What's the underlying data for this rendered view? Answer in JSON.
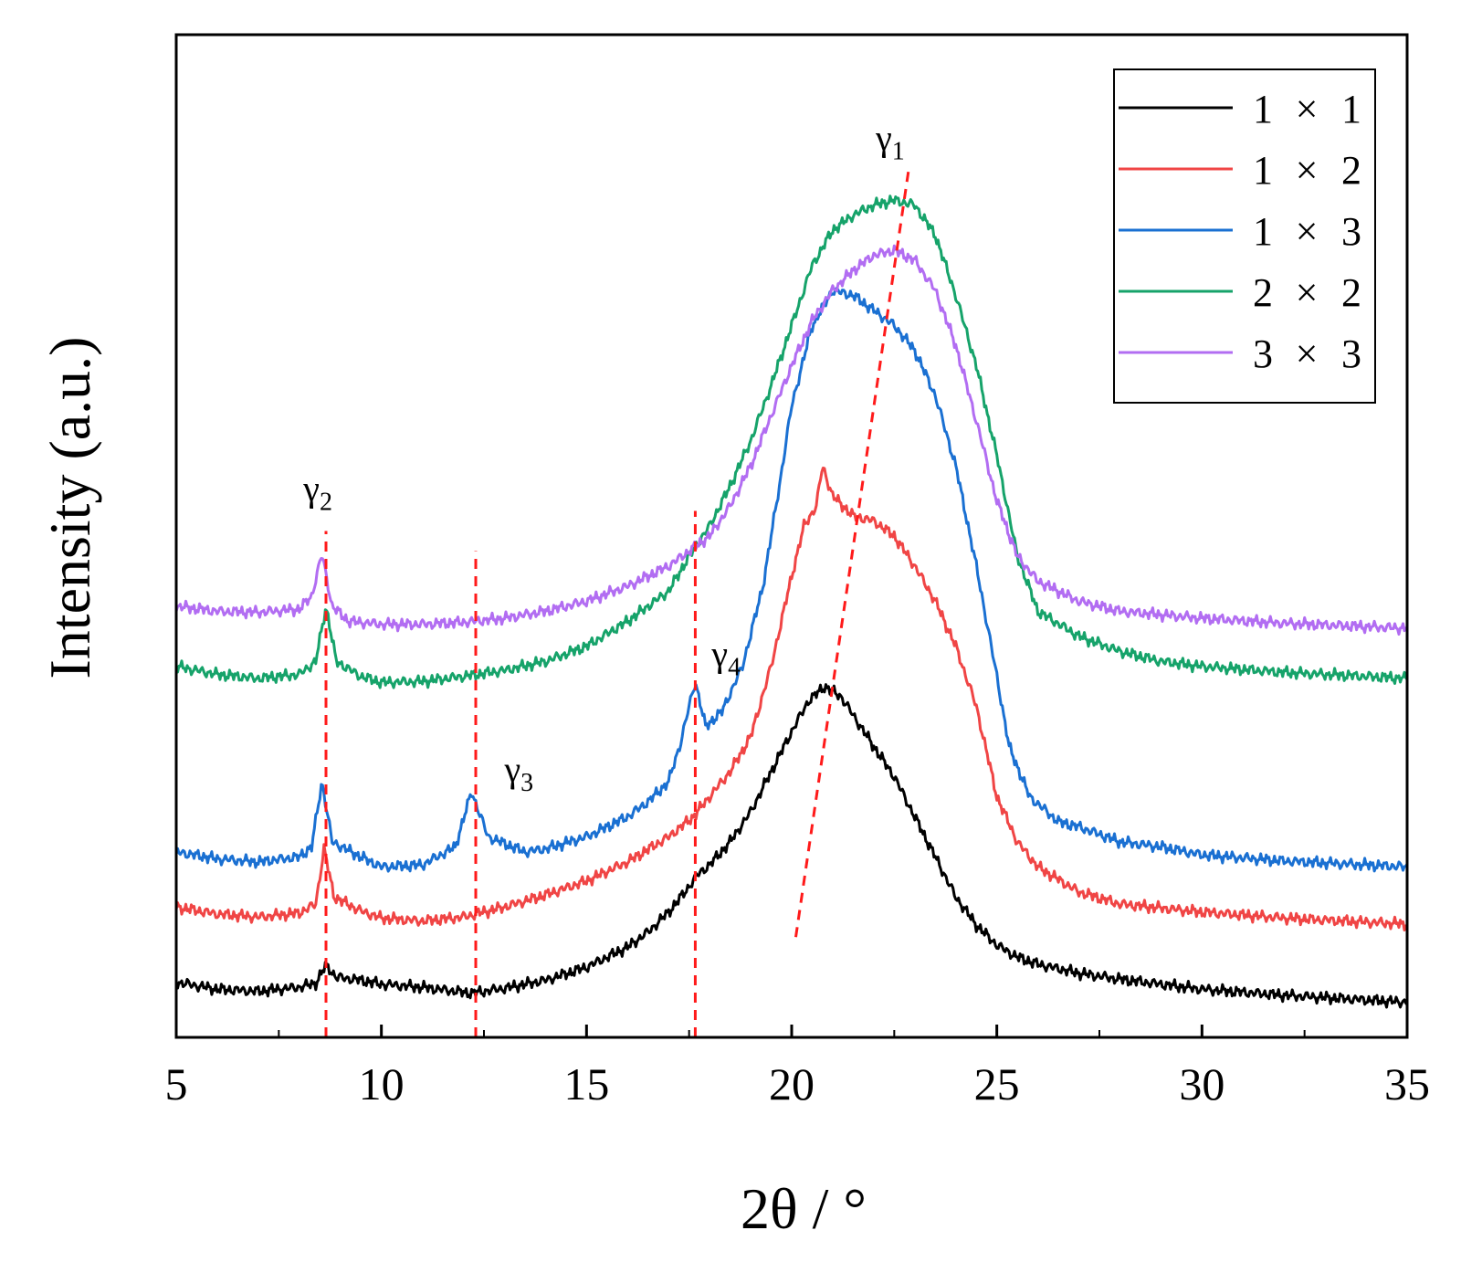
{
  "chart_data": {
    "type": "line",
    "title": "",
    "xlabel": "2θ / °",
    "ylabel": "Intensity (a.u.)",
    "xlim": [
      5,
      35
    ],
    "ylim": [
      0,
      100
    ],
    "xticks": [
      5,
      10,
      15,
      20,
      25,
      30,
      35
    ],
    "xtick_labels": [
      "5",
      "10",
      "15",
      "20",
      "25",
      "30",
      "35"
    ],
    "y_tick_labels": false,
    "grid": false,
    "legend_position": "top-right",
    "legend_separator": "×",
    "series": [
      {
        "name": "1 × 1",
        "label_left": "1",
        "label_right": "1",
        "color": "#000000",
        "x": [
          5,
          6,
          7,
          8,
          8.4,
          8.65,
          8.9,
          9.5,
          10,
          11,
          12,
          12.2,
          13,
          14,
          15,
          16,
          16.5,
          17,
          17.4,
          17.7,
          18,
          18.5,
          19,
          19.5,
          20,
          20.4,
          20.8,
          21.2,
          21.6,
          22,
          22.5,
          23,
          23.5,
          24,
          24.5,
          25,
          25.5,
          26,
          27,
          28,
          30,
          32,
          35
        ],
        "y": [
          5.5,
          4.8,
          4.6,
          5.0,
          5.4,
          7.2,
          6.0,
          5.7,
          5.3,
          5.0,
          4.5,
          4.4,
          4.9,
          5.7,
          7.0,
          9.0,
          10.5,
          12.5,
          14.5,
          16.2,
          17.2,
          19.5,
          22.5,
          26.5,
          30.5,
          33.5,
          35.0,
          34.0,
          31.5,
          29.0,
          26.0,
          22.0,
          18.0,
          14.0,
          11.2,
          9.2,
          8.0,
          7.3,
          6.4,
          5.8,
          4.8,
          4.2,
          3.5
        ]
      },
      {
        "name": "1 × 2",
        "label_left": "1",
        "label_right": "2",
        "color": "#f04545",
        "x": [
          5,
          6,
          7,
          8,
          8.4,
          8.6,
          8.85,
          9.5,
          10,
          11,
          12,
          13,
          14,
          15,
          16,
          17,
          17.6,
          18,
          18.5,
          19,
          19.5,
          20,
          20.3,
          20.6,
          20.75,
          21,
          21.5,
          22,
          22.5,
          23,
          23.5,
          24,
          24.5,
          25,
          25.5,
          26,
          27,
          28,
          30,
          32,
          35
        ],
        "y": [
          13.0,
          12.3,
          12.0,
          12.4,
          13.3,
          18.8,
          14.0,
          12.6,
          11.9,
          11.6,
          12.0,
          13.0,
          14.2,
          15.6,
          17.5,
          20.0,
          22.0,
          24.0,
          26.5,
          30.0,
          37.0,
          46.0,
          51.0,
          53.0,
          57.0,
          54.0,
          52.0,
          51.5,
          50.0,
          47.0,
          43.5,
          39.0,
          33.0,
          24.0,
          19.5,
          17.0,
          14.5,
          13.3,
          12.5,
          11.9,
          11.3
        ]
      },
      {
        "name": "1 × 3",
        "label_left": "1",
        "label_right": "3",
        "color": "#1a70d2",
        "x": [
          5,
          6,
          7,
          8,
          8.3,
          8.55,
          8.8,
          9.5,
          10,
          11,
          11.8,
          12.2,
          12.6,
          13.5,
          14,
          15,
          16,
          16.5,
          17,
          17.3,
          17.5,
          17.65,
          17.9,
          18.3,
          18.8,
          19.3,
          19.7,
          20,
          20.5,
          21,
          21.5,
          22,
          22.5,
          23,
          23.5,
          24,
          24.5,
          25,
          25.3,
          25.8,
          26.5,
          27,
          28,
          29,
          30,
          32,
          35
        ],
        "y": [
          18.5,
          17.8,
          17.5,
          18.0,
          19.0,
          25.5,
          19.5,
          18.0,
          17.0,
          17.2,
          19.0,
          24.5,
          20.0,
          18.5,
          18.8,
          20.0,
          22.0,
          23.5,
          25.5,
          29.5,
          33.0,
          35.5,
          31.0,
          32.5,
          37.0,
          45.0,
          55.0,
          63.0,
          71.0,
          74.5,
          74.0,
          72.5,
          71.0,
          68.5,
          64.0,
          57.0,
          47.0,
          36.0,
          29.0,
          24.0,
          21.5,
          21.0,
          19.5,
          19.0,
          18.2,
          17.6,
          17.0
        ]
      },
      {
        "name": "2 × 2",
        "label_left": "2",
        "label_right": "2",
        "color": "#16a36a",
        "x": [
          5,
          6,
          7,
          8,
          8.4,
          8.65,
          8.9,
          9.5,
          10,
          11,
          12,
          13,
          14,
          15,
          16,
          17,
          17.5,
          18,
          18.5,
          19,
          19.5,
          20,
          20.5,
          21,
          21.5,
          22,
          22.5,
          23,
          23.5,
          24,
          24.5,
          25,
          25.5,
          26,
          27,
          28,
          29,
          30,
          32,
          35
        ],
        "y": [
          37.0,
          36.2,
          35.8,
          36.2,
          37.5,
          43.0,
          37.5,
          36.0,
          35.4,
          35.5,
          36.0,
          36.6,
          37.5,
          39.0,
          41.5,
          44.5,
          48.0,
          51.0,
          55.0,
          59.5,
          65.0,
          71.0,
          77.0,
          80.5,
          82.0,
          83.0,
          83.5,
          83.0,
          80.0,
          74.0,
          67.0,
          58.0,
          48.0,
          42.5,
          40.0,
          38.5,
          37.5,
          37.0,
          36.4,
          35.8
        ]
      },
      {
        "name": "3 × 3",
        "label_left": "3",
        "label_right": "3",
        "color": "#b26df2",
        "x": [
          5,
          6,
          7,
          8,
          8.3,
          8.55,
          8.8,
          9.2,
          10,
          11,
          12,
          13,
          14,
          15,
          16,
          17,
          18,
          18.5,
          19,
          19.5,
          20,
          20.5,
          21,
          21.5,
          22,
          22.5,
          23,
          23.5,
          24,
          24.5,
          25,
          25.5,
          26,
          27,
          28,
          30,
          32,
          35
        ],
        "y": [
          43.0,
          42.5,
          42.4,
          42.7,
          44.0,
          48.2,
          43.0,
          41.5,
          41.2,
          41.2,
          41.4,
          41.8,
          42.5,
          43.5,
          45.0,
          47.0,
          50.0,
          53.0,
          57.0,
          62.0,
          67.0,
          71.5,
          74.5,
          76.5,
          78.0,
          78.5,
          77.5,
          74.5,
          69.0,
          61.5,
          53.5,
          48.0,
          45.5,
          43.5,
          42.5,
          41.8,
          41.3,
          40.8
        ]
      }
    ],
    "reference_lines": [
      {
        "x0": 8.65,
        "y0": 0,
        "x1": 8.65,
        "y1": 50.5,
        "color": "#ff1a1a",
        "style": "dashed"
      },
      {
        "x0": 12.3,
        "y0": 0,
        "x1": 12.3,
        "y1": 48.5,
        "color": "#ff1a1a",
        "style": "dashed"
      },
      {
        "x0": 17.65,
        "y0": 0,
        "x1": 17.65,
        "y1": 52.5,
        "color": "#ff1a1a",
        "style": "dashed"
      },
      {
        "x0": 20.1,
        "y0": 10.0,
        "x1": 22.85,
        "y1": 86.5,
        "color": "#ff1a1a",
        "style": "dashed"
      }
    ],
    "peak_annotations": [
      {
        "symbol": "γ",
        "sub": "1",
        "x": 22.05,
        "y": 88.5
      },
      {
        "symbol": "γ",
        "sub": "2",
        "x": 8.1,
        "y": 53.5
      },
      {
        "symbol": "γ",
        "sub": "3",
        "x": 13.0,
        "y": 25.5
      },
      {
        "symbol": "γ",
        "sub": "4",
        "x": 18.05,
        "y": 37.0
      }
    ]
  }
}
